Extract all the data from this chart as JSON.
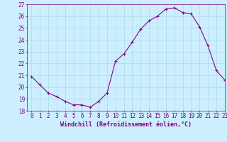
{
  "x": [
    0,
    1,
    2,
    3,
    4,
    5,
    6,
    7,
    8,
    9,
    10,
    11,
    12,
    13,
    14,
    15,
    16,
    17,
    18,
    19,
    20,
    21,
    22,
    23
  ],
  "y": [
    20.9,
    20.2,
    19.5,
    19.2,
    18.8,
    18.5,
    18.5,
    18.3,
    18.8,
    19.5,
    22.2,
    22.8,
    23.8,
    24.9,
    25.6,
    26.0,
    26.6,
    26.7,
    26.3,
    26.2,
    25.1,
    23.5,
    21.4,
    20.6
  ],
  "xlabel": "Windchill (Refroidissement éolien,°C)",
  "ylim": [
    18,
    27
  ],
  "xlim": [
    -0.5,
    23
  ],
  "yticks": [
    18,
    19,
    20,
    21,
    22,
    23,
    24,
    25,
    26,
    27
  ],
  "xticks": [
    0,
    1,
    2,
    3,
    4,
    5,
    6,
    7,
    8,
    9,
    10,
    11,
    12,
    13,
    14,
    15,
    16,
    17,
    18,
    19,
    20,
    21,
    22,
    23
  ],
  "line_color": "#880088",
  "marker": "+",
  "bg_color": "#cceeff",
  "grid_color": "#aadddd",
  "tick_color": "#800080",
  "label_color": "#800080",
  "font_size_label": 6,
  "font_size_tick": 5.5
}
